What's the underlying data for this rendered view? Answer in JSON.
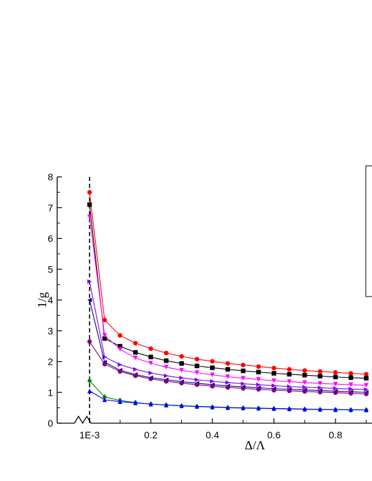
{
  "chart_data": {
    "type": "line",
    "title": "",
    "xlabel": "Δ/Λ",
    "ylabel": "1/g",
    "xlim": [
      -0.05,
      0.92
    ],
    "ylim": [
      0,
      8
    ],
    "axis_break": "x",
    "reference_line": {
      "x": 0.001,
      "style": "dashed",
      "label": "1E-3"
    },
    "x_tick_labels": [
      "1E-3",
      "0.2",
      "0.4",
      "0.6",
      "0.8"
    ],
    "x_ticks": [
      0.001,
      0.2,
      0.4,
      0.6,
      0.8
    ],
    "y_ticks": [
      0,
      1,
      2,
      3,
      4,
      5,
      6,
      7,
      8
    ],
    "y_tick_labels": [
      "0",
      "1",
      "2",
      "3",
      "4",
      "5",
      "6",
      "7",
      "8"
    ],
    "legend": {
      "placement": "top-right",
      "entries": []
    },
    "x": [
      0.001,
      0.05,
      0.1,
      0.15,
      0.2,
      0.25,
      0.3,
      0.35,
      0.4,
      0.45,
      0.5,
      0.55,
      0.6,
      0.65,
      0.7,
      0.75,
      0.8,
      0.85,
      0.9
    ],
    "series": [
      {
        "color": "#ff0000",
        "marker": "circle",
        "values": [
          7.5,
          3.35,
          2.85,
          2.6,
          2.42,
          2.28,
          2.17,
          2.08,
          2.01,
          1.94,
          1.89,
          1.84,
          1.79,
          1.75,
          1.71,
          1.68,
          1.65,
          1.62,
          1.59
        ]
      },
      {
        "color": "#000000",
        "marker": "square",
        "values": [
          7.1,
          2.75,
          2.5,
          2.3,
          2.15,
          2.03,
          1.94,
          1.86,
          1.8,
          1.75,
          1.7,
          1.66,
          1.62,
          1.59,
          1.56,
          1.53,
          1.5,
          1.48,
          1.46
        ]
      },
      {
        "color": "#ff00ff",
        "marker": "triangle-down",
        "values": [
          6.7,
          2.85,
          2.4,
          2.12,
          1.95,
          1.82,
          1.72,
          1.64,
          1.57,
          1.51,
          1.46,
          1.42,
          1.38,
          1.35,
          1.32,
          1.29,
          1.27,
          1.25,
          1.23
        ]
      },
      {
        "color": "#8000ff",
        "marker": "triangle-right",
        "values": [
          4.6,
          2.15,
          1.9,
          1.75,
          1.63,
          1.54,
          1.47,
          1.41,
          1.36,
          1.32,
          1.28,
          1.25,
          1.22,
          1.19,
          1.17,
          1.15,
          1.13,
          1.11,
          1.09
        ]
      },
      {
        "color": "#000080",
        "marker": "triangle-left",
        "values": [
          4.0,
          1.98,
          1.72,
          1.58,
          1.48,
          1.41,
          1.35,
          1.3,
          1.25,
          1.21,
          1.18,
          1.15,
          1.12,
          1.1,
          1.08,
          1.06,
          1.04,
          1.02,
          1.0
        ]
      },
      {
        "color": "#800080",
        "marker": "circle",
        "values": [
          2.65,
          1.92,
          1.68,
          1.54,
          1.44,
          1.36,
          1.3,
          1.25,
          1.2,
          1.16,
          1.13,
          1.1,
          1.07,
          1.05,
          1.03,
          1.01,
          0.99,
          0.97,
          0.95
        ]
      },
      {
        "color": "#008000",
        "marker": "diamond",
        "values": [
          1.38,
          0.85,
          0.74,
          0.67,
          0.62,
          0.59,
          0.56,
          0.54,
          0.52,
          0.5,
          0.49,
          0.48,
          0.47,
          0.46,
          0.45,
          0.44,
          0.44,
          0.43,
          0.43
        ]
      },
      {
        "color": "#0000ff",
        "marker": "triangle-up",
        "values": [
          1.05,
          0.76,
          0.7,
          0.66,
          0.62,
          0.59,
          0.57,
          0.55,
          0.53,
          0.51,
          0.5,
          0.49,
          0.48,
          0.47,
          0.46,
          0.45,
          0.44,
          0.44,
          0.43
        ]
      }
    ]
  }
}
